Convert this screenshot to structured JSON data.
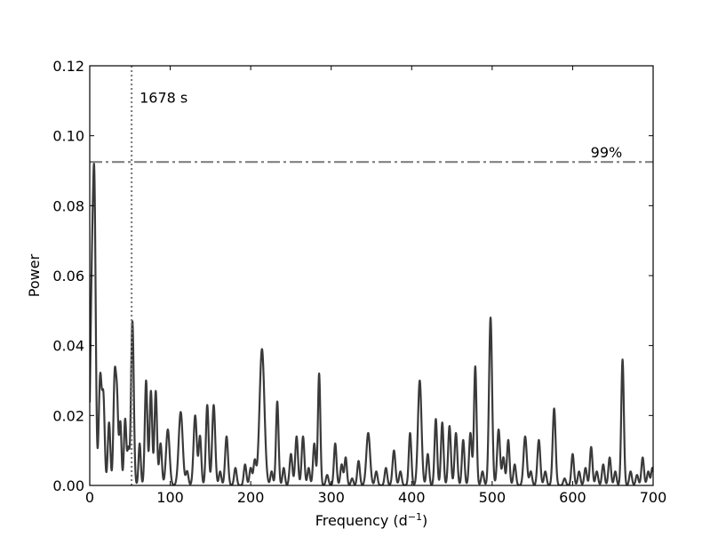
{
  "chart_data": {
    "type": "line",
    "title": "",
    "xlabel": "Frequency (d",
    "xlabel_sup": "−1",
    "xlabel_close": ")",
    "ylabel": "Power",
    "xlim": [
      0,
      700
    ],
    "ylim": [
      0,
      0.12
    ],
    "xticks": [
      0,
      100,
      200,
      300,
      400,
      500,
      600,
      700
    ],
    "xtick_labels": [
      "0",
      "100",
      "200",
      "300",
      "400",
      "500",
      "600",
      "700"
    ],
    "yticks": [
      0,
      0.02,
      0.04,
      0.06,
      0.08,
      0.1,
      0.12
    ],
    "ytick_labels": [
      "0.00",
      "0.02",
      "0.04",
      "0.06",
      "0.08",
      "0.10",
      "0.12"
    ],
    "grid": false,
    "colors": {
      "series": "#3a3a3a",
      "reference": "#808080"
    },
    "series": [
      {
        "peaks": [
          [
            3,
            0.06,
            2.2
          ],
          [
            6,
            0.063,
            1.6
          ],
          [
            13,
            0.031,
            1.8
          ],
          [
            17,
            0.024,
            1.6
          ],
          [
            24,
            0.018,
            1.6
          ],
          [
            31,
            0.031,
            1.6
          ],
          [
            34,
            0.022,
            1.4
          ],
          [
            38,
            0.018,
            1.4
          ],
          [
            44,
            0.019,
            1.5
          ],
          [
            48,
            0.01,
            1.3
          ],
          [
            53,
            0.047,
            1.7
          ],
          [
            62,
            0.012,
            1.4
          ],
          [
            70,
            0.03,
            1.6
          ],
          [
            76,
            0.027,
            1.6
          ],
          [
            82,
            0.027,
            1.6
          ],
          [
            88,
            0.012,
            1.6
          ],
          [
            97,
            0.016,
            2.2
          ],
          [
            113,
            0.021,
            2.5
          ],
          [
            121,
            0.004,
            1.6
          ],
          [
            131,
            0.02,
            2.0
          ],
          [
            137,
            0.014,
            1.6
          ],
          [
            146,
            0.023,
            1.7
          ],
          [
            154,
            0.023,
            1.9
          ],
          [
            162,
            0.004,
            1.5
          ],
          [
            170,
            0.014,
            1.8
          ],
          [
            181,
            0.005,
            1.6
          ],
          [
            193,
            0.006,
            1.6
          ],
          [
            200,
            0.005,
            1.6
          ],
          [
            205,
            0.007,
            1.6
          ],
          [
            214,
            0.039,
            3.0
          ],
          [
            226,
            0.004,
            1.5
          ],
          [
            233,
            0.024,
            1.6
          ],
          [
            241,
            0.005,
            1.5
          ],
          [
            250,
            0.009,
            1.7
          ],
          [
            257,
            0.014,
            1.7
          ],
          [
            265,
            0.014,
            1.7
          ],
          [
            272,
            0.005,
            1.5
          ],
          [
            279,
            0.012,
            1.6
          ],
          [
            285,
            0.032,
            1.5
          ],
          [
            295,
            0.003,
            1.6
          ],
          [
            305,
            0.012,
            1.6
          ],
          [
            313,
            0.006,
            1.6
          ],
          [
            318,
            0.008,
            1.5
          ],
          [
            326,
            0.002,
            1.5
          ],
          [
            334,
            0.007,
            1.6
          ],
          [
            346,
            0.015,
            2.3
          ],
          [
            356,
            0.004,
            1.6
          ],
          [
            368,
            0.005,
            1.6
          ],
          [
            378,
            0.01,
            1.8
          ],
          [
            386,
            0.004,
            1.6
          ],
          [
            398,
            0.015,
            1.6
          ],
          [
            410,
            0.03,
            2.2
          ],
          [
            420,
            0.009,
            1.6
          ],
          [
            430,
            0.019,
            1.6
          ],
          [
            438,
            0.018,
            1.6
          ],
          [
            447,
            0.017,
            1.7
          ],
          [
            455,
            0.015,
            1.7
          ],
          [
            464,
            0.013,
            1.6
          ],
          [
            473,
            0.015,
            1.7
          ],
          [
            479,
            0.034,
            1.6
          ],
          [
            488,
            0.004,
            1.6
          ],
          [
            498,
            0.048,
            1.9
          ],
          [
            508,
            0.016,
            1.8
          ],
          [
            514,
            0.008,
            1.6
          ],
          [
            520,
            0.013,
            1.6
          ],
          [
            528,
            0.006,
            1.6
          ],
          [
            541,
            0.014,
            2.0
          ],
          [
            548,
            0.004,
            1.6
          ],
          [
            558,
            0.013,
            1.8
          ],
          [
            566,
            0.004,
            1.6
          ],
          [
            577,
            0.022,
            1.8
          ],
          [
            590,
            0.002,
            1.6
          ],
          [
            600,
            0.009,
            1.6
          ],
          [
            608,
            0.004,
            1.6
          ],
          [
            616,
            0.005,
            1.6
          ],
          [
            623,
            0.011,
            1.6
          ],
          [
            630,
            0.004,
            1.6
          ],
          [
            638,
            0.006,
            1.6
          ],
          [
            646,
            0.008,
            1.6
          ],
          [
            653,
            0.004,
            1.5
          ],
          [
            662,
            0.036,
            1.6
          ],
          [
            672,
            0.004,
            1.6
          ],
          [
            680,
            0.003,
            1.6
          ],
          [
            687,
            0.008,
            1.6
          ],
          [
            694,
            0.004,
            1.6
          ],
          [
            699,
            0.005,
            1.4
          ]
        ]
      }
    ],
    "reference_lines": [
      {
        "orientation": "vertical",
        "x": 52,
        "style": "dotted",
        "label": "1678 s"
      },
      {
        "orientation": "horizontal",
        "y": 0.0925,
        "style": "dashdot",
        "label": "99%"
      }
    ]
  }
}
